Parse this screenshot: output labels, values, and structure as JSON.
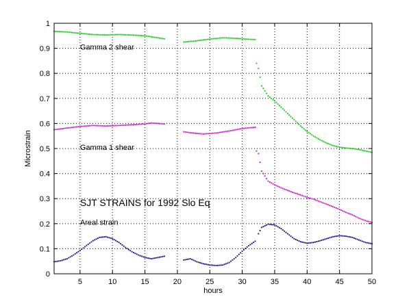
{
  "chart_data": {
    "type": "scatter",
    "title": "",
    "xlabel": "hours",
    "ylabel": "Microstrain",
    "xlim": [
      1,
      50
    ],
    "ylim": [
      0,
      1
    ],
    "xticks": [
      5,
      10,
      15,
      20,
      25,
      30,
      35,
      40,
      45,
      50
    ],
    "yticks": [
      0,
      0.1,
      0.2,
      0.3,
      0.4,
      0.5,
      0.6,
      0.7,
      0.8,
      0.9,
      1
    ],
    "ytick_labels": [
      "0",
      "0.1",
      "0.2",
      "0.3",
      "0.4",
      "0.5",
      "0.6",
      "0.7",
      "0.8",
      "0.9",
      "1"
    ],
    "grid": "dotted",
    "annotations": [
      {
        "text": "Gamma 2  shear",
        "x": 5,
        "y": 0.895,
        "size": "small"
      },
      {
        "text": "Gamma 1  shear",
        "x": 5,
        "y": 0.495,
        "size": "small"
      },
      {
        "text": "SJT STRAINS for 1992 Slo Eq",
        "x": 5,
        "y": 0.27,
        "size": "large"
      },
      {
        "text": "Areal  strain",
        "x": 5,
        "y": 0.195,
        "size": "small"
      }
    ],
    "series": [
      {
        "color": "#22cc22",
        "segments": [
          [
            [
              1,
              0.968
            ],
            [
              3,
              0.965
            ],
            [
              5,
              0.96
            ],
            [
              7,
              0.955
            ],
            [
              9,
              0.953
            ],
            [
              11,
              0.955
            ],
            [
              13,
              0.953
            ],
            [
              15,
              0.95
            ],
            [
              17,
              0.942
            ],
            [
              18,
              0.938
            ]
          ],
          [
            [
              21,
              0.925
            ],
            [
              23,
              0.93
            ],
            [
              25,
              0.937
            ],
            [
              27,
              0.942
            ],
            [
              29,
              0.94
            ],
            [
              31,
              0.936
            ],
            [
              32,
              0.935
            ]
          ],
          [
            [
              32.2,
              0.84
            ],
            [
              32.5,
              0.82
            ],
            [
              33,
              0.75
            ],
            [
              34,
              0.71
            ],
            [
              35,
              0.69
            ],
            [
              36,
              0.665
            ],
            [
              37,
              0.64
            ],
            [
              38,
              0.615
            ],
            [
              39,
              0.59
            ],
            [
              40,
              0.568
            ],
            [
              41,
              0.55
            ],
            [
              42,
              0.535
            ],
            [
              43,
              0.522
            ],
            [
              44,
              0.512
            ],
            [
              45,
              0.505
            ],
            [
              46,
              0.502
            ],
            [
              47,
              0.5
            ],
            [
              48,
              0.496
            ],
            [
              49,
              0.49
            ],
            [
              50,
              0.485
            ]
          ]
        ]
      },
      {
        "color": "#cc22cc",
        "segments": [
          [
            [
              1,
              0.575
            ],
            [
              3,
              0.582
            ],
            [
              5,
              0.588
            ],
            [
              7,
              0.592
            ],
            [
              9,
              0.59
            ],
            [
              11,
              0.592
            ],
            [
              13,
              0.595
            ],
            [
              15,
              0.598
            ],
            [
              16,
              0.602
            ],
            [
              18,
              0.598
            ]
          ],
          [
            [
              21,
              0.567
            ],
            [
              22,
              0.563
            ],
            [
              24,
              0.558
            ],
            [
              26,
              0.562
            ],
            [
              28,
              0.57
            ],
            [
              30,
              0.58
            ],
            [
              32,
              0.585
            ]
          ],
          [
            [
              32.2,
              0.49
            ],
            [
              32.5,
              0.48
            ],
            [
              33,
              0.41
            ],
            [
              34,
              0.37
            ],
            [
              35,
              0.355
            ],
            [
              36,
              0.343
            ],
            [
              37,
              0.333
            ],
            [
              38,
              0.323
            ],
            [
              39,
              0.315
            ],
            [
              40,
              0.305
            ],
            [
              41,
              0.298
            ],
            [
              42,
              0.288
            ],
            [
              43,
              0.278
            ],
            [
              44,
              0.268
            ],
            [
              45,
              0.257
            ],
            [
              46,
              0.245
            ],
            [
              47,
              0.235
            ],
            [
              48,
              0.222
            ],
            [
              49,
              0.212
            ],
            [
              50,
              0.205
            ]
          ]
        ]
      },
      {
        "color": "#1a1a8c",
        "segments": [
          [
            [
              1,
              0.048
            ],
            [
              2,
              0.052
            ],
            [
              3,
              0.06
            ],
            [
              4,
              0.075
            ],
            [
              5,
              0.093
            ],
            [
              6,
              0.113
            ],
            [
              7,
              0.132
            ],
            [
              8,
              0.145
            ],
            [
              9,
              0.148
            ],
            [
              10,
              0.14
            ],
            [
              11,
              0.125
            ],
            [
              12,
              0.105
            ],
            [
              13,
              0.088
            ],
            [
              14,
              0.075
            ],
            [
              15,
              0.065
            ],
            [
              16,
              0.06
            ],
            [
              17,
              0.065
            ],
            [
              18,
              0.07
            ]
          ],
          [
            [
              21,
              0.055
            ],
            [
              22,
              0.06
            ],
            [
              23,
              0.048
            ],
            [
              24,
              0.04
            ],
            [
              25,
              0.035
            ],
            [
              26,
              0.033
            ],
            [
              27,
              0.035
            ],
            [
              28,
              0.045
            ],
            [
              29,
              0.065
            ],
            [
              30,
              0.09
            ],
            [
              31,
              0.112
            ],
            [
              32,
              0.13
            ]
          ],
          [
            [
              32.5,
              0.16
            ],
            [
              33,
              0.185
            ],
            [
              34,
              0.198
            ],
            [
              35,
              0.195
            ],
            [
              36,
              0.18
            ],
            [
              37,
              0.16
            ],
            [
              38,
              0.14
            ],
            [
              39,
              0.128
            ],
            [
              40,
              0.122
            ],
            [
              41,
              0.125
            ],
            [
              42,
              0.132
            ],
            [
              43,
              0.14
            ],
            [
              44,
              0.148
            ],
            [
              45,
              0.152
            ],
            [
              46,
              0.15
            ],
            [
              47,
              0.145
            ],
            [
              48,
              0.135
            ],
            [
              49,
              0.125
            ],
            [
              50,
              0.12
            ]
          ]
        ]
      }
    ]
  }
}
